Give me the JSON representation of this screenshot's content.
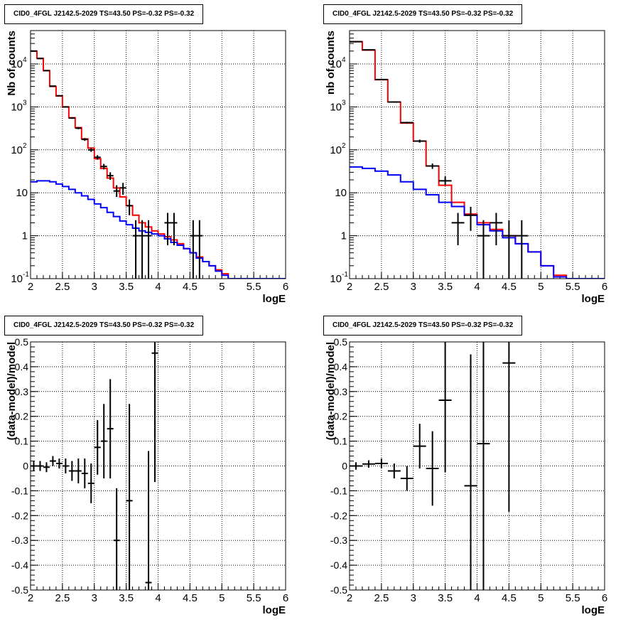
{
  "colors": {
    "data": "#000000",
    "total_model": "#ff0000",
    "background_model": "#0000ff",
    "grid": "#000000"
  },
  "chart_data": [
    {
      "id": "top-left",
      "type": "line",
      "title": "CID0_4FGL J2142.5-2029 TS=43.50 PS=-0.32 PS=-0.32",
      "xlabel": "logE",
      "ylabel": "Nb of counts",
      "xlim": [
        2,
        6
      ],
      "ylim": [
        0.1,
        60000
      ],
      "yscale": "log",
      "grid": true,
      "x_ticks": [
        "2",
        "2.5",
        "3",
        "3.5",
        "4",
        "4.5",
        "5",
        "5.5",
        "6"
      ],
      "y_ticks": [
        {
          "value": 0.1,
          "label": "10",
          "exp": "-1"
        },
        {
          "value": 1,
          "label": "1",
          "exp": ""
        },
        {
          "value": 10,
          "label": "10",
          "exp": ""
        },
        {
          "value": 100,
          "label": "10",
          "exp": "2"
        },
        {
          "value": 1000,
          "label": "10",
          "exp": "3"
        },
        {
          "value": 10000,
          "label": "10",
          "exp": "4"
        }
      ],
      "bin_edges": [
        2.0,
        2.1,
        2.2,
        2.3,
        2.4,
        2.5,
        2.6,
        2.7,
        2.8,
        2.9,
        3.0,
        3.1,
        3.2,
        3.3,
        3.4,
        3.5,
        3.6,
        3.7,
        3.8,
        3.9,
        4.0,
        4.1,
        4.2,
        4.3,
        4.4,
        4.5,
        4.6,
        4.7,
        4.8,
        4.9,
        5.0,
        5.1,
        5.2,
        5.3,
        5.4,
        5.5,
        5.6,
        5.7,
        5.8,
        5.9,
        6.0
      ],
      "series": [
        {
          "name": "",
          "style": "step",
          "color": "#ff0000",
          "values": [
            20000,
            13500,
            7000,
            3000,
            1800,
            1000,
            560,
            330,
            180,
            110,
            62,
            37,
            22,
            13,
            8,
            5,
            3,
            2,
            1.6,
            1.3,
            1.1,
            0.95,
            0.8,
            0.65,
            0.5,
            0.4,
            0.32,
            0.25,
            0.2,
            0.16,
            0.13,
            0.1,
            0.1,
            0.1,
            0.1,
            0.1,
            0.1,
            0.1,
            0.1,
            0.1
          ]
        },
        {
          "name": "",
          "style": "step",
          "color": "#0000ff",
          "values": [
            18,
            19,
            19,
            18,
            16,
            14,
            12,
            10,
            8.5,
            7,
            5.5,
            4.5,
            3.5,
            2.8,
            2.2,
            1.8,
            1.5,
            1.3,
            1.2,
            1.1,
            1.0,
            0.85,
            0.7,
            0.6,
            0.5,
            0.4,
            0.3,
            0.25,
            0.2,
            0.15,
            0.12,
            0.1,
            0.1,
            0.1,
            0.1,
            0.1,
            0.1,
            0.1,
            0.1,
            0.1
          ]
        },
        {
          "name": "",
          "style": "errorbars",
          "color": "#000000",
          "points": [
            {
              "x": 2.05,
              "y": 20000,
              "lo": 19850,
              "hi": 20150
            },
            {
              "x": 2.15,
              "y": 13400,
              "lo": 13280,
              "hi": 13520
            },
            {
              "x": 2.25,
              "y": 7000,
              "lo": 6920,
              "hi": 7080
            },
            {
              "x": 2.35,
              "y": 3050,
              "lo": 2990,
              "hi": 3110
            },
            {
              "x": 2.45,
              "y": 1820,
              "lo": 1780,
              "hi": 1860
            },
            {
              "x": 2.55,
              "y": 1000,
              "lo": 970,
              "hi": 1030
            },
            {
              "x": 2.65,
              "y": 550,
              "lo": 527,
              "hi": 573
            },
            {
              "x": 2.75,
              "y": 320,
              "lo": 302,
              "hi": 338
            },
            {
              "x": 2.85,
              "y": 175,
              "lo": 162,
              "hi": 188
            },
            {
              "x": 2.95,
              "y": 100,
              "lo": 90,
              "hi": 110
            },
            {
              "x": 3.05,
              "y": 67,
              "lo": 59,
              "hi": 75
            },
            {
              "x": 3.15,
              "y": 41,
              "lo": 35,
              "hi": 47
            },
            {
              "x": 3.25,
              "y": 25,
              "lo": 20,
              "hi": 30
            },
            {
              "x": 3.35,
              "y": 11,
              "lo": 8,
              "hi": 15
            },
            {
              "x": 3.45,
              "y": 13,
              "lo": 9,
              "hi": 17
            },
            {
              "x": 3.55,
              "y": 5,
              "lo": 3,
              "hi": 7
            },
            {
              "x": 3.65,
              "y": 1,
              "lo": 0.1,
              "hi": 2.3
            },
            {
              "x": 3.75,
              "y": 1,
              "lo": 0.1,
              "hi": 2.3
            },
            {
              "x": 3.85,
              "y": 1,
              "lo": 0.1,
              "hi": 2.3
            },
            {
              "x": 4.15,
              "y": 2,
              "lo": 0.6,
              "hi": 3.4
            },
            {
              "x": 4.25,
              "y": 2,
              "lo": 0.6,
              "hi": 3.4
            },
            {
              "x": 4.55,
              "y": 1,
              "lo": 0.1,
              "hi": 2.3
            },
            {
              "x": 4.65,
              "y": 1,
              "lo": 0.1,
              "hi": 2.3
            }
          ]
        }
      ]
    },
    {
      "id": "top-right",
      "type": "line",
      "title": "CID0_4FGL J2142.5-2029 TS=43.50 PS=-0.32 PS=-0.32",
      "xlabel": "logE",
      "ylabel": "nb of counts",
      "xlim": [
        2,
        6
      ],
      "ylim": [
        0.1,
        60000
      ],
      "yscale": "log",
      "grid": true,
      "x_ticks": [
        "2",
        "2.5",
        "3",
        "3.5",
        "4",
        "4.5",
        "5",
        "5.5",
        "6"
      ],
      "y_ticks": [
        {
          "value": 0.1,
          "label": "10",
          "exp": "-1"
        },
        {
          "value": 1,
          "label": "1",
          "exp": ""
        },
        {
          "value": 10,
          "label": "10",
          "exp": ""
        },
        {
          "value": 100,
          "label": "10",
          "exp": "2"
        },
        {
          "value": 1000,
          "label": "10",
          "exp": "3"
        },
        {
          "value": 10000,
          "label": "10",
          "exp": "4"
        }
      ],
      "bin_edges": [
        2.0,
        2.2,
        2.4,
        2.6,
        2.8,
        3.0,
        3.2,
        3.4,
        3.6,
        3.8,
        4.0,
        4.2,
        4.4,
        4.6,
        4.8,
        5.0,
        5.2,
        5.4,
        5.6,
        5.8,
        6.0
      ],
      "series": [
        {
          "name": "",
          "style": "step",
          "color": "#ff0000",
          "values": [
            33000,
            21000,
            4300,
            1300,
            420,
            160,
            42,
            15,
            6,
            3.2,
            2,
            1.4,
            1,
            0.65,
            0.42,
            0.2,
            0.12,
            0.1,
            0.1,
            0.1
          ]
        },
        {
          "name": "",
          "style": "step",
          "color": "#0000ff",
          "values": [
            40,
            37,
            32,
            26,
            18,
            12,
            9,
            6,
            4.8,
            3,
            1.8,
            1.3,
            0.9,
            0.65,
            0.42,
            0.2,
            0.11,
            0.1,
            0.1,
            0.1
          ]
        },
        {
          "name": "",
          "style": "errorbars",
          "color": "#000000",
          "points": [
            {
              "x": 2.1,
              "y": 33000,
              "lo": 32800,
              "hi": 33200
            },
            {
              "x": 2.3,
              "y": 21300,
              "lo": 21150,
              "hi": 21450
            },
            {
              "x": 2.5,
              "y": 4350,
              "lo": 4285,
              "hi": 4415
            },
            {
              "x": 2.7,
              "y": 1300,
              "lo": 1264,
              "hi": 1336
            },
            {
              "x": 2.9,
              "y": 430,
              "lo": 409,
              "hi": 451
            },
            {
              "x": 3.1,
              "y": 160,
              "lo": 147,
              "hi": 173
            },
            {
              "x": 3.3,
              "y": 42,
              "lo": 36,
              "hi": 48
            },
            {
              "x": 3.5,
              "y": 19,
              "lo": 15,
              "hi": 24
            },
            {
              "x": 3.7,
              "y": 2,
              "lo": 0.6,
              "hi": 3.4
            },
            {
              "x": 3.9,
              "y": 3,
              "lo": 1.3,
              "hi": 4.7
            },
            {
              "x": 4.1,
              "y": 1,
              "lo": 0.1,
              "hi": 2.3
            },
            {
              "x": 4.3,
              "y": 2,
              "lo": 0.6,
              "hi": 3.4
            },
            {
              "x": 4.5,
              "y": 1,
              "lo": 0.1,
              "hi": 2.3
            },
            {
              "x": 4.7,
              "y": 1,
              "lo": 0.1,
              "hi": 2.3
            }
          ]
        }
      ]
    },
    {
      "id": "bottom-left",
      "type": "scatter",
      "title": "CID0_4FGL J2142.5-2029 TS=43.50 PS=-0.32 PS=-0.32",
      "xlabel": "logE",
      "ylabel": "(data-model)/model",
      "xlim": [
        2,
        6
      ],
      "ylim": [
        -0.5,
        0.5
      ],
      "yscale": "linear",
      "grid": true,
      "x_ticks": [
        "2",
        "2.5",
        "3",
        "3.5",
        "4",
        "4.5",
        "5",
        "5.5",
        "6"
      ],
      "y_ticks": [
        "-0.5",
        "-0.4",
        "-0.3",
        "-0.2",
        "-0.1",
        "0",
        "0.1",
        "0.2",
        "0.3",
        "0.4",
        "0.5"
      ],
      "x_halfwidth": 0.05,
      "series": [
        {
          "name": "",
          "style": "errorbars",
          "color": "#000000",
          "points": [
            {
              "x": 2.05,
              "y": 0.0,
              "err": 0.02
            },
            {
              "x": 2.15,
              "y": 0.0,
              "err": 0.02
            },
            {
              "x": 2.25,
              "y": -0.005,
              "err": 0.02
            },
            {
              "x": 2.35,
              "y": 0.02,
              "err": 0.02
            },
            {
              "x": 2.45,
              "y": 0.01,
              "err": 0.02
            },
            {
              "x": 2.55,
              "y": 0.0,
              "err": 0.03
            },
            {
              "x": 2.65,
              "y": -0.02,
              "err": 0.04
            },
            {
              "x": 2.75,
              "y": -0.02,
              "err": 0.05
            },
            {
              "x": 2.85,
              "y": -0.03,
              "err": 0.06
            },
            {
              "x": 2.95,
              "y": -0.07,
              "err": 0.08
            },
            {
              "x": 3.05,
              "y": 0.075,
              "err": 0.11
            },
            {
              "x": 3.15,
              "y": 0.1,
              "err": 0.15
            },
            {
              "x": 3.25,
              "y": 0.15,
              "err": 0.2
            },
            {
              "x": 3.35,
              "y": -0.3,
              "err": 0.21
            },
            {
              "x": 3.55,
              "y": -0.14,
              "err": 0.39
            },
            {
              "x": 3.85,
              "y": -0.47,
              "err": 0.53
            },
            {
              "x": 3.95,
              "y": 0.455,
              "err": 0.52
            }
          ]
        }
      ]
    },
    {
      "id": "bottom-right",
      "type": "scatter",
      "title": "CID0_4FGL J2142.5-2029 TS=43.50 PS=-0.32 PS=-0.32",
      "xlabel": "logE",
      "ylabel": "(data-model)/model",
      "xlim": [
        2,
        6
      ],
      "ylim": [
        -0.5,
        0.5
      ],
      "yscale": "linear",
      "grid": true,
      "x_ticks": [
        "2",
        "2.5",
        "3",
        "3.5",
        "4",
        "4.5",
        "5",
        "5.5",
        "6"
      ],
      "y_ticks": [
        "-0.5",
        "-0.4",
        "-0.3",
        "-0.2",
        "-0.1",
        "0",
        "0.1",
        "0.2",
        "0.3",
        "0.4",
        "0.5"
      ],
      "x_halfwidth": 0.1,
      "series": [
        {
          "name": "",
          "style": "errorbars",
          "color": "#000000",
          "points": [
            {
              "x": 2.1,
              "y": 0.0,
              "err": 0.015
            },
            {
              "x": 2.3,
              "y": 0.008,
              "err": 0.015
            },
            {
              "x": 2.5,
              "y": 0.01,
              "err": 0.02
            },
            {
              "x": 2.7,
              "y": -0.02,
              "err": 0.03
            },
            {
              "x": 2.9,
              "y": -0.05,
              "err": 0.05
            },
            {
              "x": 3.1,
              "y": 0.08,
              "err": 0.09
            },
            {
              "x": 3.3,
              "y": -0.01,
              "err": 0.15
            },
            {
              "x": 3.5,
              "y": 0.265,
              "err": 0.29
            },
            {
              "x": 3.9,
              "y": -0.08,
              "err": 0.53
            },
            {
              "x": 4.1,
              "y": 0.09,
              "err": 0.6
            },
            {
              "x": 4.5,
              "y": 0.415,
              "err": 0.6
            }
          ]
        }
      ]
    }
  ]
}
